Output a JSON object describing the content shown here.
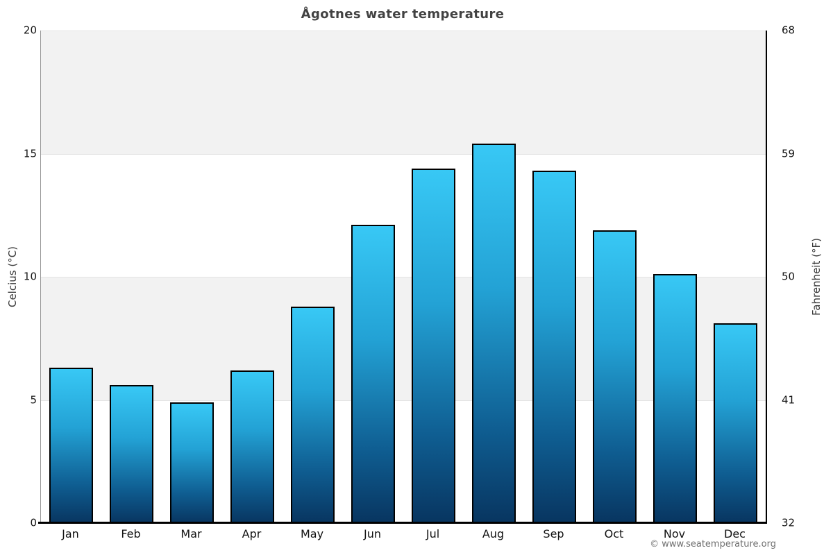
{
  "chart_data": {
    "type": "bar",
    "title": "Ågotnes water temperature",
    "categories": [
      "Jan",
      "Feb",
      "Mar",
      "Apr",
      "May",
      "Jun",
      "Jul",
      "Aug",
      "Sep",
      "Oct",
      "Nov",
      "Dec"
    ],
    "values": [
      6.3,
      5.6,
      4.9,
      6.2,
      8.8,
      12.1,
      14.4,
      15.4,
      14.3,
      11.9,
      10.1,
      8.1
    ],
    "xlabel": "",
    "ylabel_left": "Celcius (°C)",
    "ylabel_right": "Fahrenheit (°F)",
    "yticks_left": [
      "0",
      "5",
      "10",
      "15",
      "20"
    ],
    "yticks_right": [
      "32",
      "41",
      "50",
      "59",
      "68"
    ],
    "ylim": [
      0,
      20
    ],
    "grid": "horizontal-bands",
    "legend": "none",
    "attribution": "© www.seatemperature.org",
    "colors": {
      "bar_gradient_stops": [
        [
          "0%",
          "#38c8f5"
        ],
        [
          "38%",
          "#23a2d5"
        ],
        [
          "75%",
          "#0f5e92"
        ],
        [
          "100%",
          "#083560"
        ]
      ],
      "bar_border": "#000000",
      "band_colors_top_to_bottom": [
        "#f2f2f2",
        "#ffffff",
        "#f2f2f2",
        "#ffffff"
      ],
      "gridline": "#e3e3e3",
      "left_axis_line": "#979797",
      "right_axis_line": "#000000",
      "bottom_axis_line": "#000000",
      "title_color": "#424242",
      "attribution_color": "#6f6f6f"
    }
  }
}
